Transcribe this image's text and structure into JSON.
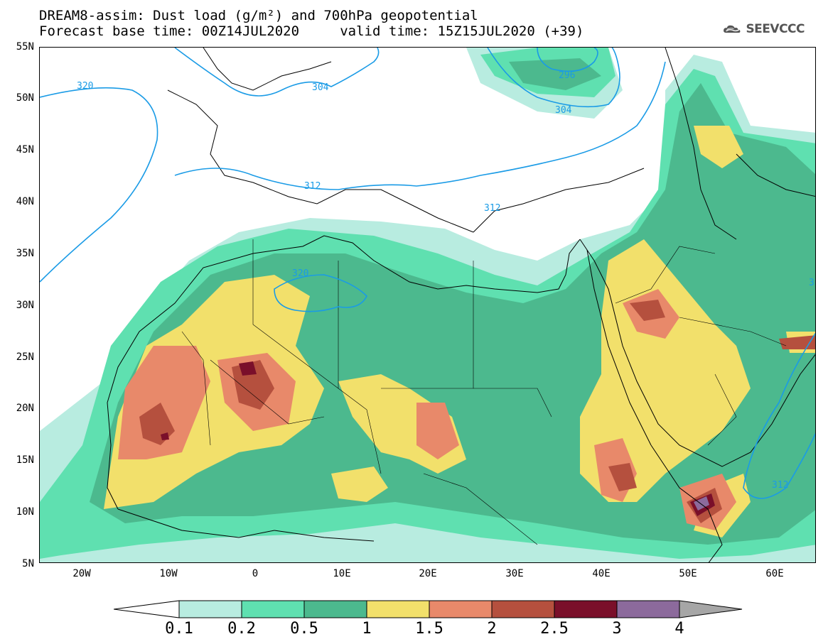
{
  "title_line1": "DREAM8-assim: Dust load (g/m²) and 700hPa geopotential",
  "title_line2": "Forecast base time: 00Z14JUL2020     valid time: 15Z15JUL2020 (+39)",
  "logo_text": "SEEVCCC",
  "lat_labels": [
    "55N",
    "50N",
    "45N",
    "40N",
    "35N",
    "30N",
    "25N",
    "20N",
    "15N",
    "10N",
    "5N"
  ],
  "lon_labels": [
    "20W",
    "10W",
    "0",
    "10E",
    "20E",
    "30E",
    "40E",
    "50E",
    "60E"
  ],
  "contour_labels": [
    "320",
    "304",
    "296",
    "304",
    "312",
    "312",
    "320",
    "312",
    "3"
  ],
  "colorbar": {
    "labels": [
      "0.1",
      "0.2",
      "0.5",
      "1",
      "1.5",
      "2",
      "2.5",
      "3",
      "4"
    ],
    "colors": [
      "#b8ece0",
      "#5fe0b0",
      "#4cb98e",
      "#f2e06b",
      "#e8896a",
      "#b5503e",
      "#7a0f2a",
      "#8c6a9c"
    ],
    "under_color": "#ffffff",
    "over_color": "#a6a6a6"
  },
  "colors": {
    "land_outline": "#000000",
    "contour": "#1a9be6"
  }
}
